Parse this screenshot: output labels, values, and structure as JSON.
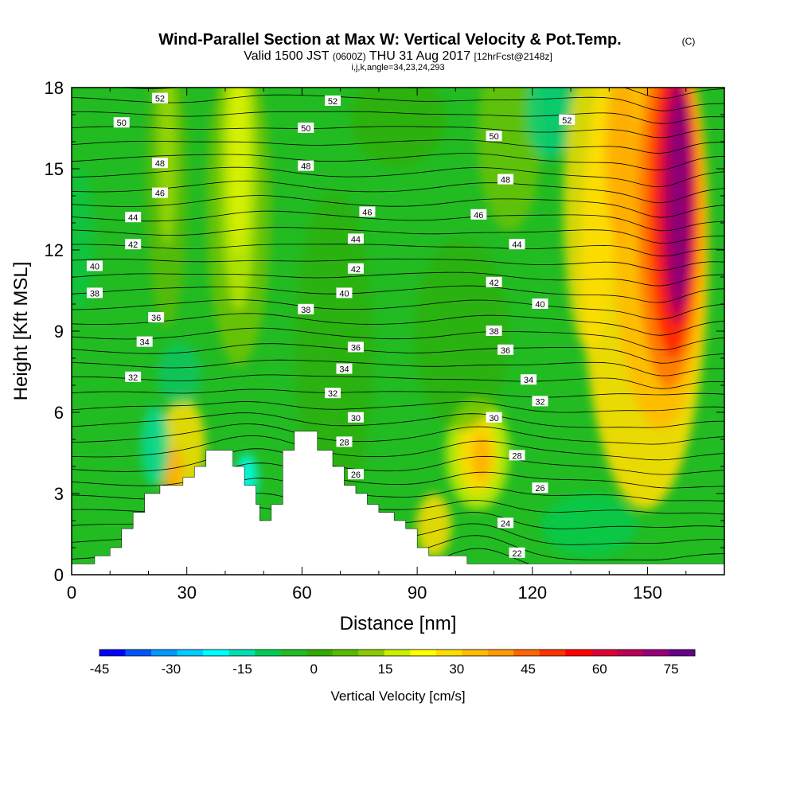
{
  "chart_data": {
    "type": "heatmap",
    "title": "Wind-Parallel Section at Max W: Vertical Velocity & Pot.Temp.",
    "title_mark": "(C)",
    "subtitle_parts": {
      "valid": "Valid 1500 JST",
      "utc": "(0600Z)",
      "date": "THU 31 Aug 2017",
      "fcst": "[12hrFcst@2148z]"
    },
    "subtitle2": "i,j,k,angle=34,23,24,293",
    "xlabel": "Distance [nm]",
    "ylabel": "Height [Kft MSL]",
    "xlim": [
      0,
      170
    ],
    "ylim": [
      0,
      18
    ],
    "x_ticks": [
      0,
      30,
      60,
      90,
      120,
      150
    ],
    "y_ticks": [
      0,
      3,
      6,
      9,
      12,
      15,
      18
    ],
    "colorbar": {
      "label": "Vertical Velocity [cm/s]",
      "range": [
        -45,
        80
      ],
      "tick_labels": [
        -45,
        -30,
        -15,
        0,
        15,
        30,
        45,
        60,
        75
      ],
      "colors": [
        "#0000ff",
        "#0055ff",
        "#0099ff",
        "#00ccff",
        "#00ffff",
        "#00dfb0",
        "#00cc55",
        "#22bb22",
        "#33aa00",
        "#55bb00",
        "#88cc00",
        "#ccee00",
        "#ffff00",
        "#ffdd00",
        "#ffbb00",
        "#ff9900",
        "#ff6600",
        "#ff3300",
        "#ff0000",
        "#dd0033",
        "#bb0055",
        "#990077",
        "#660088"
      ]
    },
    "terrain": [
      {
        "x": 0,
        "h": 0.4
      },
      {
        "x": 6,
        "h": 0.4
      },
      {
        "x": 6,
        "h": 0.7
      },
      {
        "x": 10,
        "h": 0.7
      },
      {
        "x": 10,
        "h": 1.0
      },
      {
        "x": 13,
        "h": 1.0
      },
      {
        "x": 13,
        "h": 1.7
      },
      {
        "x": 16,
        "h": 1.7
      },
      {
        "x": 16,
        "h": 2.3
      },
      {
        "x": 19,
        "h": 2.3
      },
      {
        "x": 19,
        "h": 3.0
      },
      {
        "x": 23,
        "h": 3.0
      },
      {
        "x": 23,
        "h": 3.3
      },
      {
        "x": 29,
        "h": 3.3
      },
      {
        "x": 29,
        "h": 3.6
      },
      {
        "x": 32,
        "h": 3.6
      },
      {
        "x": 32,
        "h": 4.0
      },
      {
        "x": 35,
        "h": 4.0
      },
      {
        "x": 35,
        "h": 4.6
      },
      {
        "x": 42,
        "h": 4.6
      },
      {
        "x": 42,
        "h": 4.0
      },
      {
        "x": 45,
        "h": 4.0
      },
      {
        "x": 45,
        "h": 3.3
      },
      {
        "x": 48,
        "h": 3.3
      },
      {
        "x": 48,
        "h": 2.6
      },
      {
        "x": 49,
        "h": 2.6
      },
      {
        "x": 49,
        "h": 2.0
      },
      {
        "x": 52,
        "h": 2.0
      },
      {
        "x": 52,
        "h": 2.6
      },
      {
        "x": 55,
        "h": 2.6
      },
      {
        "x": 55,
        "h": 4.6
      },
      {
        "x": 58,
        "h": 4.6
      },
      {
        "x": 58,
        "h": 5.3
      },
      {
        "x": 64,
        "h": 5.3
      },
      {
        "x": 64,
        "h": 4.6
      },
      {
        "x": 68,
        "h": 4.6
      },
      {
        "x": 68,
        "h": 4.0
      },
      {
        "x": 71,
        "h": 4.0
      },
      {
        "x": 71,
        "h": 3.3
      },
      {
        "x": 74,
        "h": 3.3
      },
      {
        "x": 74,
        "h": 3.0
      },
      {
        "x": 77,
        "h": 3.0
      },
      {
        "x": 77,
        "h": 2.6
      },
      {
        "x": 80,
        "h": 2.6
      },
      {
        "x": 80,
        "h": 2.3
      },
      {
        "x": 84,
        "h": 2.3
      },
      {
        "x": 84,
        "h": 2.0
      },
      {
        "x": 87,
        "h": 2.0
      },
      {
        "x": 87,
        "h": 1.7
      },
      {
        "x": 90,
        "h": 1.7
      },
      {
        "x": 90,
        "h": 1.0
      },
      {
        "x": 93,
        "h": 1.0
      },
      {
        "x": 93,
        "h": 0.7
      },
      {
        "x": 103,
        "h": 0.7
      },
      {
        "x": 103,
        "h": 0.4
      },
      {
        "x": 170,
        "h": 0.4
      }
    ],
    "contour_labels": [
      {
        "v": "52",
        "x": 23,
        "y": 17.6
      },
      {
        "v": "50",
        "x": 13,
        "y": 16.7
      },
      {
        "v": "48",
        "x": 23,
        "y": 15.2
      },
      {
        "v": "46",
        "x": 23,
        "y": 14.1
      },
      {
        "v": "44",
        "x": 16,
        "y": 13.2
      },
      {
        "v": "42",
        "x": 16,
        "y": 12.2
      },
      {
        "v": "40",
        "x": 6,
        "y": 11.4
      },
      {
        "v": "38",
        "x": 6,
        "y": 10.4
      },
      {
        "v": "36",
        "x": 22,
        "y": 9.5
      },
      {
        "v": "34",
        "x": 19,
        "y": 8.6
      },
      {
        "v": "32",
        "x": 16,
        "y": 7.3
      },
      {
        "v": "52",
        "x": 68,
        "y": 17.5
      },
      {
        "v": "50",
        "x": 61,
        "y": 16.5
      },
      {
        "v": "48",
        "x": 61,
        "y": 15.1
      },
      {
        "v": "46",
        "x": 77,
        "y": 13.4
      },
      {
        "v": "44",
        "x": 74,
        "y": 12.4
      },
      {
        "v": "42",
        "x": 74,
        "y": 11.3
      },
      {
        "v": "40",
        "x": 71,
        "y": 10.4
      },
      {
        "v": "38",
        "x": 61,
        "y": 9.8
      },
      {
        "v": "36",
        "x": 74,
        "y": 8.4
      },
      {
        "v": "34",
        "x": 71,
        "y": 7.6
      },
      {
        "v": "32",
        "x": 68,
        "y": 6.7
      },
      {
        "v": "30",
        "x": 74,
        "y": 5.8
      },
      {
        "v": "28",
        "x": 71,
        "y": 4.9
      },
      {
        "v": "26",
        "x": 74,
        "y": 3.7
      },
      {
        "v": "52",
        "x": 129,
        "y": 16.8
      },
      {
        "v": "50",
        "x": 110,
        "y": 16.2
      },
      {
        "v": "48",
        "x": 113,
        "y": 14.6
      },
      {
        "v": "46",
        "x": 106,
        "y": 13.3
      },
      {
        "v": "44",
        "x": 116,
        "y": 12.2
      },
      {
        "v": "42",
        "x": 110,
        "y": 10.8
      },
      {
        "v": "40",
        "x": 122,
        "y": 10.0
      },
      {
        "v": "38",
        "x": 110,
        "y": 9.0
      },
      {
        "v": "36",
        "x": 113,
        "y": 8.3
      },
      {
        "v": "34",
        "x": 119,
        "y": 7.2
      },
      {
        "v": "32",
        "x": 122,
        "y": 6.4
      },
      {
        "v": "30",
        "x": 110,
        "y": 5.8
      },
      {
        "v": "28",
        "x": 116,
        "y": 4.4
      },
      {
        "v": "26",
        "x": 122,
        "y": 3.2
      },
      {
        "v": "24",
        "x": 113,
        "y": 1.9
      },
      {
        "v": "22",
        "x": 116,
        "y": 0.8
      }
    ]
  }
}
